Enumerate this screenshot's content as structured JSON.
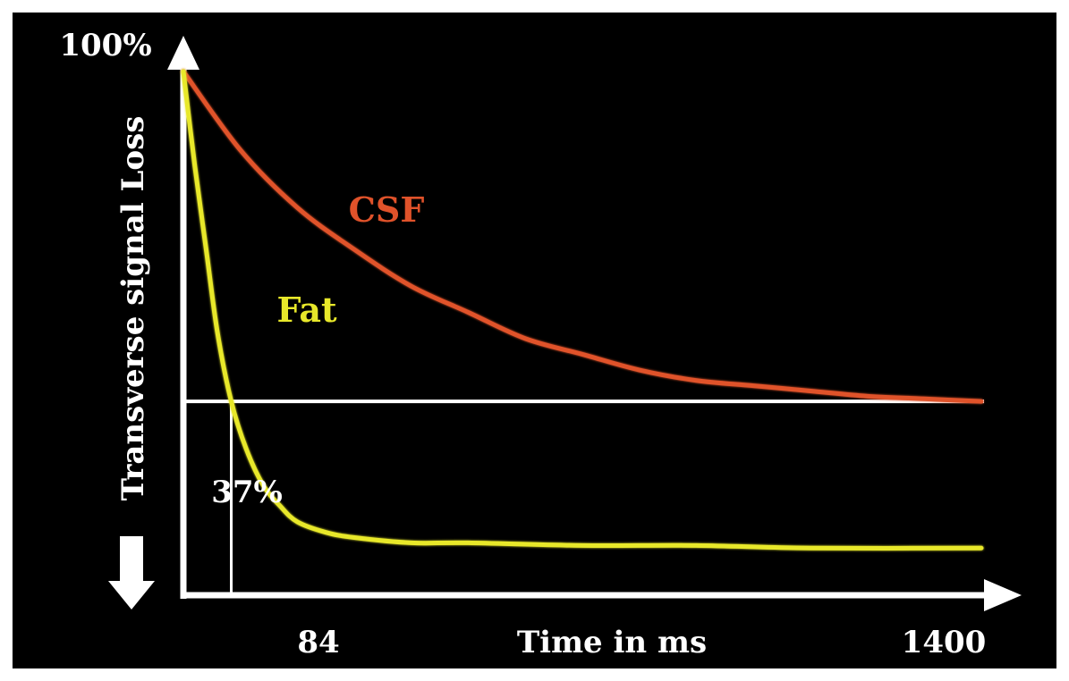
{
  "chart_data": {
    "type": "line",
    "title": "",
    "xlabel": "Time in ms",
    "ylabel": "Transverse signal Loss",
    "xlim": [
      0,
      1400
    ],
    "ylim": [
      0,
      100
    ],
    "y_top_label": "100%",
    "x_tick_labels": [
      "84",
      "1400"
    ],
    "threshold": {
      "value": 37,
      "label": "37%",
      "x_crossing": 84
    },
    "grid": false,
    "legend": "none",
    "colors": {
      "background": "#000000",
      "axes": "#ffffff",
      "csf": "#e0522a",
      "fat": "#e8e82a"
    },
    "series": [
      {
        "name": "CSF",
        "color": "#e0522a",
        "x": [
          0,
          100,
          200,
          300,
          400,
          500,
          600,
          700,
          800,
          900,
          1000,
          1100,
          1200,
          1300,
          1400
        ],
        "y": [
          100,
          85,
          74,
          66,
          59,
          54,
          49,
          46,
          43,
          41,
          40,
          39,
          38,
          37.5,
          37
        ]
      },
      {
        "name": "Fat",
        "color": "#e8e82a",
        "x": [
          0,
          20,
          40,
          60,
          84,
          110,
          140,
          170,
          200,
          250,
          300,
          400,
          500,
          700,
          900,
          1100,
          1400
        ],
        "y": [
          100,
          82,
          66,
          50,
          37,
          28,
          21,
          17,
          14,
          12,
          11,
          10,
          10,
          9.5,
          9.5,
          9,
          9
        ]
      }
    ]
  }
}
